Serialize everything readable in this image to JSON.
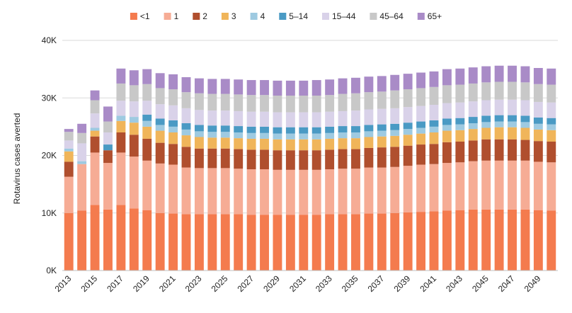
{
  "chart_data": {
    "type": "bar",
    "stacked": true,
    "ylabel": "Rotavirus cases averted",
    "ylim": [
      0,
      40000
    ],
    "yticks": [
      {
        "value": 0,
        "label": "0K"
      },
      {
        "value": 10000,
        "label": "10K"
      },
      {
        "value": 20000,
        "label": "20K"
      },
      {
        "value": 30000,
        "label": "30K"
      },
      {
        "value": 40000,
        "label": "40K"
      }
    ],
    "grid": true,
    "legend_position": "top",
    "x": [
      2013,
      2014,
      2015,
      2016,
      2017,
      2018,
      2019,
      2020,
      2021,
      2022,
      2023,
      2024,
      2025,
      2026,
      2027,
      2028,
      2029,
      2030,
      2031,
      2032,
      2033,
      2034,
      2035,
      2036,
      2037,
      2038,
      2039,
      2040,
      2041,
      2042,
      2043,
      2044,
      2045,
      2046,
      2047,
      2048,
      2049,
      2050
    ],
    "xtick_labels": [
      "2013",
      "",
      "2015",
      "",
      "2017",
      "",
      "2019",
      "",
      "2021",
      "",
      "2023",
      "",
      "2025",
      "",
      "2027",
      "",
      "2029",
      "",
      "2031",
      "",
      "2033",
      "",
      "2035",
      "",
      "2037",
      "",
      "2039",
      "",
      "2041",
      "",
      "2043",
      "",
      "2045",
      "",
      "2047",
      "",
      "2049",
      ""
    ],
    "series": [
      {
        "name": "<1",
        "color": "#f47b4e",
        "values": [
          10000,
          10400,
          11400,
          10600,
          11400,
          10800,
          10500,
          10000,
          9900,
          9800,
          9800,
          9800,
          9800,
          9800,
          9700,
          9700,
          9700,
          9700,
          9700,
          9700,
          9800,
          9800,
          9800,
          9900,
          9900,
          10000,
          10100,
          10200,
          10300,
          10400,
          10500,
          10600,
          10600,
          10600,
          10600,
          10600,
          10500,
          10400
        ]
      },
      {
        "name": "1",
        "color": "#f6ac95",
        "values": [
          6300,
          8100,
          9100,
          8100,
          9100,
          9000,
          8600,
          8600,
          8500,
          8100,
          8000,
          8000,
          8000,
          7900,
          7900,
          7900,
          7800,
          7800,
          7800,
          7800,
          7800,
          7900,
          7900,
          8000,
          8000,
          8000,
          8100,
          8200,
          8200,
          8300,
          8300,
          8400,
          8500,
          8500,
          8500,
          8500,
          8400,
          8400
        ]
      },
      {
        "name": "2",
        "color": "#b04f2e",
        "values": [
          2600,
          0,
          2800,
          2200,
          3500,
          3800,
          3800,
          3600,
          3600,
          3600,
          3400,
          3400,
          3400,
          3400,
          3400,
          3400,
          3400,
          3400,
          3400,
          3400,
          3400,
          3400,
          3400,
          3400,
          3500,
          3500,
          3500,
          3500,
          3500,
          3600,
          3600,
          3600,
          3700,
          3700,
          3700,
          3600,
          3600,
          3600
        ]
      },
      {
        "name": "3",
        "color": "#f0b55a",
        "values": [
          1800,
          0,
          1000,
          0,
          2000,
          2100,
          2100,
          2100,
          2000,
          2000,
          2000,
          1900,
          1900,
          1900,
          1900,
          1900,
          1900,
          1900,
          1900,
          1900,
          1900,
          1900,
          1900,
          1900,
          1900,
          1900,
          1900,
          1900,
          2000,
          2000,
          2000,
          2000,
          2000,
          2100,
          2100,
          2100,
          2000,
          2000
        ]
      },
      {
        "name": "4",
        "color": "#9ecae1",
        "values": [
          500,
          500,
          500,
          0,
          900,
          1000,
          1000,
          1000,
          1000,
          1000,
          1000,
          1000,
          1000,
          1000,
          1000,
          1000,
          1000,
          1000,
          1000,
          1000,
          1000,
          1000,
          1000,
          1000,
          1000,
          1000,
          1000,
          1000,
          1000,
          1000,
          1000,
          1000,
          1000,
          1000,
          1000,
          1000,
          1000,
          1000
        ]
      },
      {
        "name": "5–14",
        "color": "#4a9ac4",
        "values": [
          0,
          0,
          0,
          1000,
          0,
          0,
          1100,
          1100,
          1100,
          1100,
          1100,
          1100,
          1100,
          1100,
          1100,
          1100,
          1100,
          1100,
          1100,
          1100,
          1100,
          1100,
          1100,
          1100,
          1100,
          1100,
          1100,
          1100,
          1100,
          1100,
          1100,
          1100,
          1100,
          1100,
          1100,
          1100,
          1100,
          1100
        ]
      },
      {
        "name": "15–44",
        "color": "#d9d2e9",
        "values": [
          1400,
          3100,
          2500,
          2100,
          2600,
          2700,
          2400,
          2500,
          2600,
          2600,
          2600,
          2600,
          2600,
          2600,
          2600,
          2600,
          2600,
          2600,
          2600,
          2600,
          2600,
          2600,
          2700,
          2700,
          2700,
          2700,
          2700,
          2700,
          2700,
          2700,
          2700,
          2700,
          2700,
          2700,
          2700,
          2700,
          2700,
          2700
        ]
      },
      {
        "name": "45–64",
        "color": "#c8c8c8",
        "values": [
          1500,
          1800,
          2300,
          1900,
          3000,
          2800,
          2900,
          2800,
          2800,
          2800,
          2900,
          2900,
          2900,
          2900,
          2900,
          2900,
          2900,
          2900,
          2900,
          2900,
          2900,
          3000,
          3000,
          3000,
          3000,
          3100,
          3100,
          3100,
          3100,
          3100,
          3100,
          3100,
          3100,
          3100,
          3100,
          3100,
          3100,
          3100
        ]
      },
      {
        "name": "65+",
        "color": "#a98bc7",
        "values": [
          500,
          1600,
          1700,
          2600,
          2600,
          2600,
          2600,
          2600,
          2600,
          2600,
          2600,
          2600,
          2600,
          2600,
          2600,
          2600,
          2600,
          2600,
          2600,
          2700,
          2700,
          2700,
          2700,
          2700,
          2700,
          2700,
          2700,
          2700,
          2700,
          2800,
          2800,
          2800,
          2800,
          2800,
          2800,
          2800,
          2800,
          2800
        ]
      }
    ]
  }
}
